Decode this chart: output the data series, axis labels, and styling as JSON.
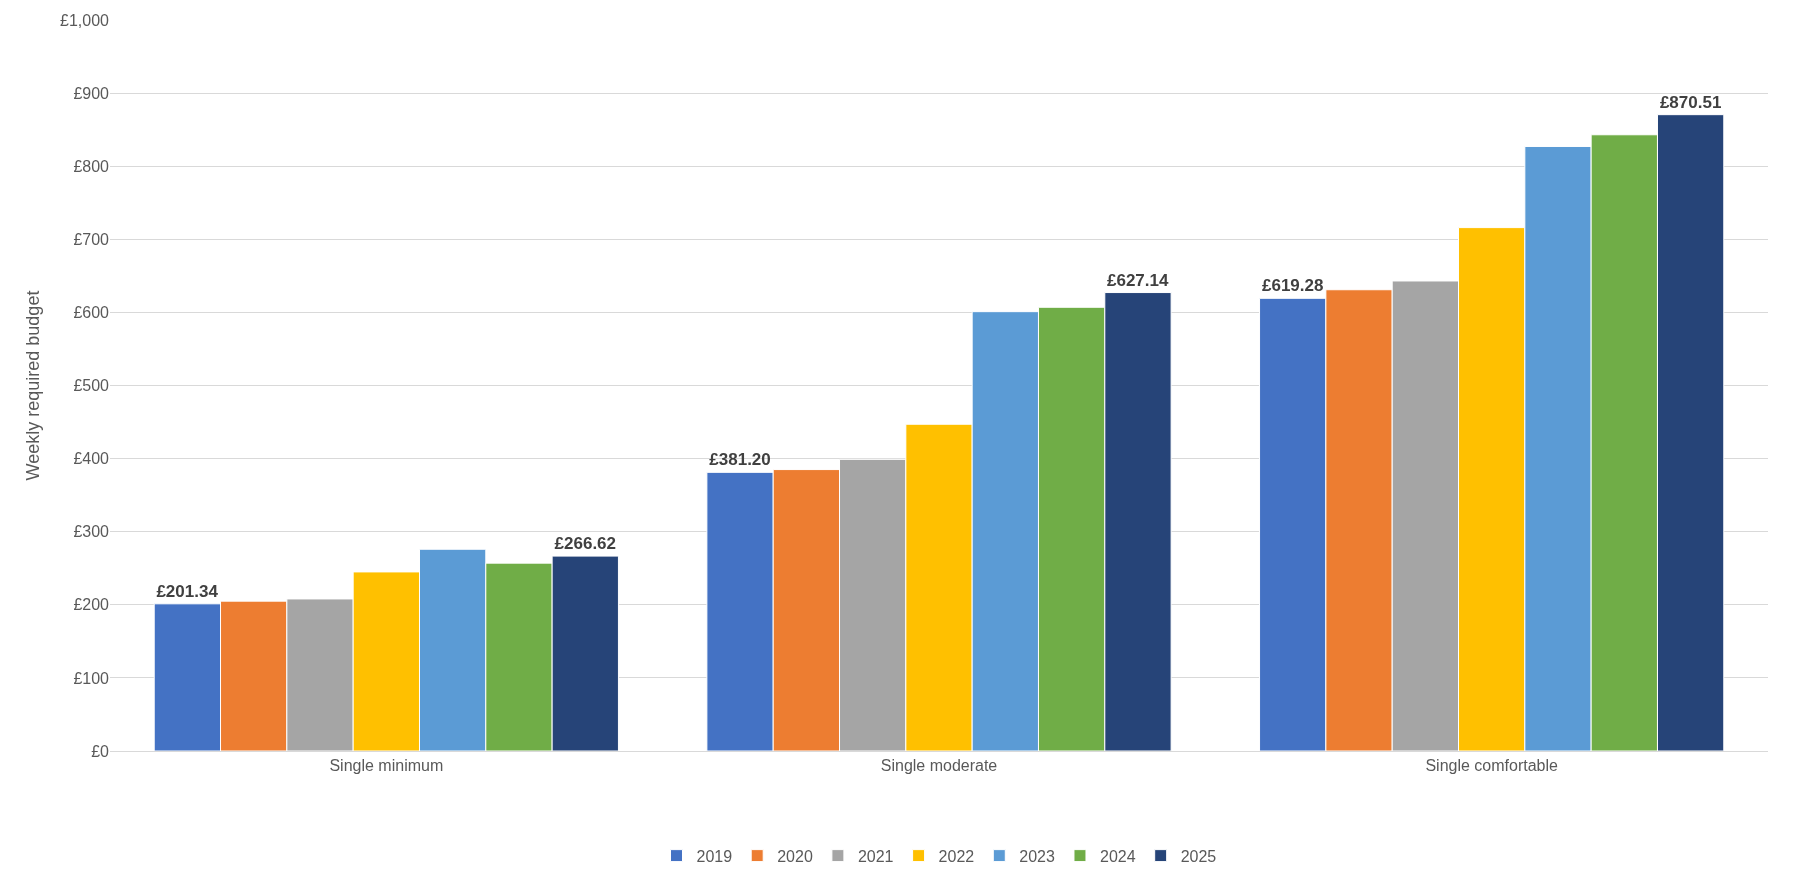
{
  "chart_data": {
    "type": "bar",
    "ylabel": "Weekly required budget",
    "categories": [
      "Single minimum",
      "Single moderate",
      "Single comfortable"
    ],
    "series": [
      {
        "name": "2019",
        "color": "#4472c4",
        "values": [
          201.34,
          381.2,
          619.28
        ],
        "value_labels": [
          "£201.34",
          "£381.20",
          "£619.28"
        ]
      },
      {
        "name": "2020",
        "color": "#ed7d31",
        "values": [
          205,
          385,
          631
        ]
      },
      {
        "name": "2021",
        "color": "#a5a5a5",
        "values": [
          208,
          399,
          643
        ]
      },
      {
        "name": "2022",
        "color": "#ffc000",
        "values": [
          245,
          447,
          716
        ]
      },
      {
        "name": "2023",
        "color": "#5b9bd5",
        "values": [
          276,
          601,
          827
        ]
      },
      {
        "name": "2024",
        "color": "#70ad47",
        "values": [
          257,
          607,
          843
        ]
      },
      {
        "name": "2025",
        "color": "#264478",
        "values": [
          266.62,
          627.14,
          870.51
        ],
        "value_labels": [
          "£266.62",
          "£627.14",
          "£870.51"
        ]
      }
    ],
    "ylim": [
      0,
      1000
    ],
    "yticks": [
      {
        "value": 0,
        "label": "£0"
      },
      {
        "value": 100,
        "label": "£100"
      },
      {
        "value": 200,
        "label": "£200"
      },
      {
        "value": 300,
        "label": "£300"
      },
      {
        "value": 400,
        "label": "£400"
      },
      {
        "value": 500,
        "label": "£500"
      },
      {
        "value": 600,
        "label": "£600"
      },
      {
        "value": 700,
        "label": "£700"
      },
      {
        "value": 800,
        "label": "£800"
      },
      {
        "value": 900,
        "label": "£900"
      },
      {
        "value": 1000,
        "label": "£1,000"
      }
    ],
    "grid": "y",
    "legend": "bottom"
  }
}
